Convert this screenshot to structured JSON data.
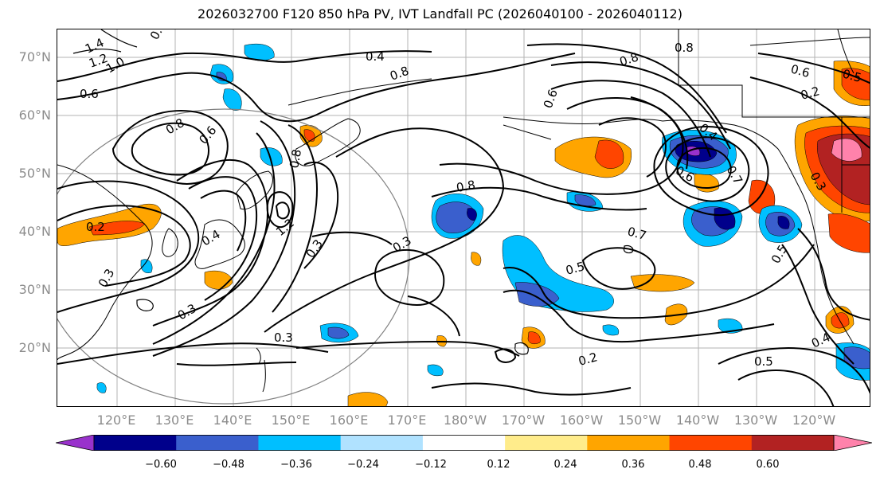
{
  "title": "2026032700 F120 850 hPa PV, IVT Landfall PC (2026040100 - 2026040112)",
  "lat_labels": [
    "70°N",
    "60°N",
    "50°N",
    "40°N",
    "30°N",
    "20°N"
  ],
  "lon_labels": [
    "120°E",
    "130°E",
    "140°E",
    "150°E",
    "160°E",
    "170°E",
    "180°W",
    "170°W",
    "160°W",
    "150°W",
    "140°W",
    "130°W",
    "120°W"
  ],
  "colorbar": {
    "colors": [
      "#9932cc",
      "#00008b",
      "#3a5fcd",
      "#00bfff",
      "#b0e2ff",
      "#ffffff",
      "#ffec8b",
      "#ffa500",
      "#ff4500",
      "#b22222",
      "#ff82ab"
    ],
    "tick_labels": [
      "−0.60",
      "−0.48",
      "−0.36",
      "−0.24",
      "−0.12",
      "0.12",
      "0.24",
      "0.36",
      "0.48",
      "0.60"
    ]
  },
  "contour_labels": [
    "1.4",
    "1.2",
    "1.0",
    "0.8",
    "0.6",
    "0.8",
    "0.6",
    "0.4",
    "0.8",
    "0.8",
    "0.8",
    "0.6",
    "0.6",
    "0.2",
    "0.5",
    "0.8",
    "0.2",
    "0.4",
    "1.2",
    "0.3",
    "0.3",
    "0.3",
    "0.3",
    "0.3",
    "0.3",
    "0.8",
    "0.7",
    "0.5",
    "0.7",
    "0.6",
    "0.4",
    "0.6",
    "0.5",
    "0.2",
    "0.5",
    "0.4",
    "0.3"
  ],
  "contour_labels_fixed": [
    "1.4",
    "1.2",
    "1.0",
    "0.8",
    "0.6",
    "0.8",
    "0.6",
    "0.4",
    "0.8",
    "0.8",
    "0.8",
    "0.6",
    "0.5",
    "0.2",
    "0.8",
    "0.2",
    "0.4",
    "1.2",
    "0.3",
    "0.3",
    "0.3",
    "0.3",
    "0.3",
    "0.8",
    "0.7",
    "0.5",
    "0.7",
    "0.6",
    "0.4",
    "0.6",
    "0.5",
    "0.2",
    "0.5",
    "0.4",
    "0.3"
  ]
}
